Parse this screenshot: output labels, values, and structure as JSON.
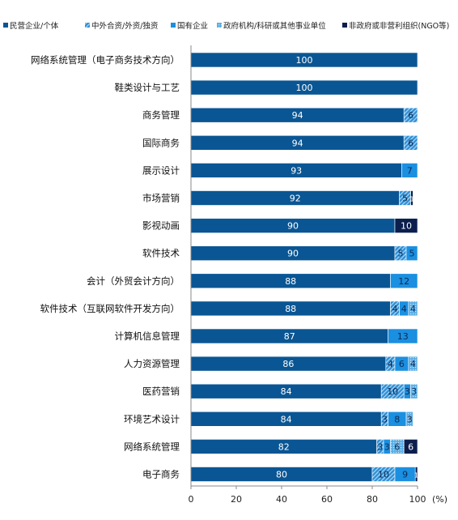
{
  "chart_data": {
    "type": "bar",
    "orientation": "horizontal",
    "stacked": true,
    "legend_position": "top",
    "x_unit_label": "(%)",
    "xlim": [
      0,
      100
    ],
    "x_ticks": [
      0,
      20,
      40,
      60,
      80,
      100
    ],
    "grid": false,
    "categories": [
      "网络系统管理（电子商务技术方向）",
      "鞋类设计与工艺",
      "商务管理",
      "国际商务",
      "展示设计",
      "市场营销",
      "影视动画",
      "软件技术",
      "会计（外贸会计方向）",
      "软件技术（互联网软件开发方向）",
      "计算机信息管理",
      "人力资源管理",
      "医药营销",
      "环境艺术设计",
      "网络系统管理",
      "电子商务"
    ],
    "series": [
      {
        "name": "民营企业/个体",
        "color": "#0a5694",
        "pattern": "solid",
        "values": [
          100,
          100,
          94,
          94,
          93,
          92,
          90,
          90,
          88,
          88,
          87,
          86,
          84,
          84,
          82,
          80
        ]
      },
      {
        "name": "中外合资/外资/独资",
        "color": "#2e8fd6",
        "pattern": "hatch",
        "values": [
          0,
          0,
          6,
          6,
          0,
          5,
          0,
          5,
          0,
          4,
          0,
          4,
          10,
          3,
          3,
          10
        ]
      },
      {
        "name": "国有企业",
        "color": "#1b8fe0",
        "pattern": "solid",
        "values": [
          0,
          0,
          0,
          0,
          7,
          0,
          0,
          5,
          12,
          4,
          13,
          6,
          3,
          8,
          3,
          9
        ]
      },
      {
        "name": "政府机构/科研或其他事业单位",
        "color": "#5aaee6",
        "pattern": "dots",
        "values": [
          0,
          0,
          0,
          0,
          0,
          0,
          0,
          0,
          0,
          4,
          0,
          4,
          3,
          3,
          6,
          0
        ]
      },
      {
        "name": "非政府或非营利组织(NGO等)",
        "color": "#0b1e4d",
        "pattern": "solid",
        "values": [
          0,
          0,
          0,
          0,
          0,
          1,
          10,
          0,
          0,
          0,
          0,
          0,
          0,
          0,
          6,
          1
        ]
      }
    ]
  }
}
